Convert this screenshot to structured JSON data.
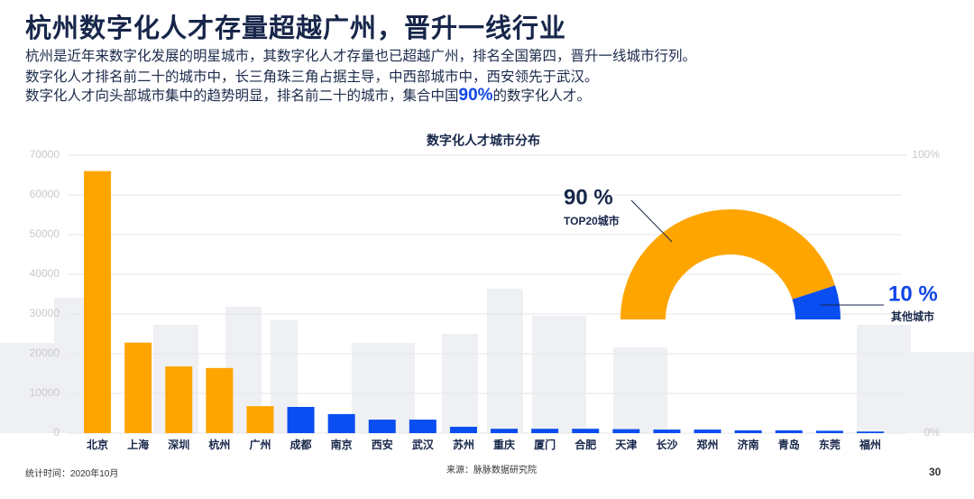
{
  "header": {
    "title": "杭州数字化人才存量超越广州，晋升一线行业",
    "lines": [
      [
        "杭州是近年来数字化发展的明星城市，其数字化人才存量也已超越广州，排名全国第四，晋升一线城市行列。"
      ],
      [
        "数字化人才排名前二十的城市中，长三角珠三角占据主导，中西部城市中，西安领先于武汉。"
      ],
      [
        "数字化人才向头部城市集中的趋势明显，排名前二十的城市，集合中国",
        "90%",
        "的数字化人才。"
      ]
    ]
  },
  "chart_data": [
    {
      "type": "bar",
      "title": "数字化人才城市分布",
      "categories": [
        "北京",
        "上海",
        "深圳",
        "杭州",
        "广州",
        "成都",
        "南京",
        "西安",
        "武汉",
        "苏州",
        "重庆",
        "厦门",
        "合肥",
        "天津",
        "长沙",
        "郑州",
        "济南",
        "青岛",
        "东莞",
        "福州"
      ],
      "values": [
        66000,
        22800,
        16800,
        16400,
        6800,
        6600,
        4800,
        3400,
        3400,
        1600,
        1100,
        1100,
        1100,
        1000,
        900,
        900,
        700,
        700,
        600,
        400
      ],
      "colors": [
        "#ffa500",
        "#ffa500",
        "#ffa500",
        "#ffa500",
        "#ffa500",
        "#0a4df0",
        "#0a4df0",
        "#0a4df0",
        "#0a4df0",
        "#0a4df0",
        "#0a4df0",
        "#0a4df0",
        "#0a4df0",
        "#0a4df0",
        "#0a4df0",
        "#0a4df0",
        "#0a4df0",
        "#0a4df0",
        "#0a4df0",
        "#0a4df0"
      ],
      "ylim": [
        0,
        70000
      ],
      "yticks": [
        0,
        10000,
        20000,
        30000,
        40000,
        50000,
        60000,
        70000
      ],
      "y2lim": [
        0,
        100
      ],
      "y2ticks": [
        {
          "value": 0,
          "label": "0%"
        },
        {
          "value": 100,
          "label": "100%"
        }
      ],
      "grid": true
    },
    {
      "type": "pie",
      "categories": [
        "TOP20城市",
        "其他城市"
      ],
      "values": [
        90,
        10
      ],
      "value_labels": [
        "90 %",
        "10 %"
      ],
      "colors": [
        "#ffa500",
        "#0a4df0"
      ]
    }
  ],
  "footer": {
    "date": "统计时间：2020年10月",
    "source": "来源：脉脉数据研究院",
    "page": "30"
  }
}
